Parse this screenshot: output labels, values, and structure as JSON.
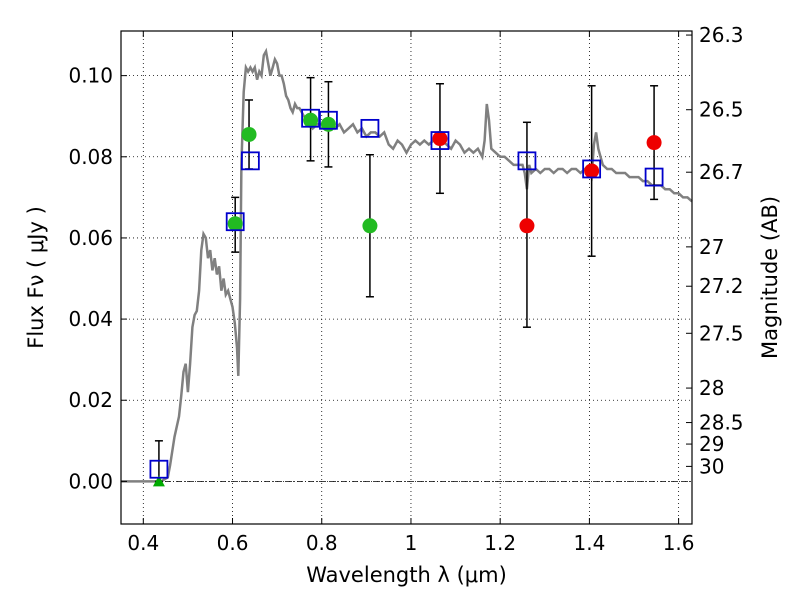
{
  "chart_data": {
    "type": "scatter",
    "xlabel": "Wavelength  λ (μm)",
    "ylabel": "Flux  Fν  ( μJy )",
    "ylabel_right": "Magnitude (AB)",
    "xlim": [
      0.35,
      1.63
    ],
    "ylim": [
      -0.0105,
      0.111
    ],
    "grid": true,
    "x_ticks": [
      0.4,
      0.6,
      0.8,
      1.0,
      1.2,
      1.4,
      1.6
    ],
    "x_tick_labels": [
      "0.4",
      "0.6",
      "0.8",
      "1",
      "1.2",
      "1.4",
      "1.6"
    ],
    "y_ticks": [
      0.0,
      0.02,
      0.04,
      0.06,
      0.08,
      0.1
    ],
    "y_tick_labels": [
      "0.00",
      "0.02",
      "0.04",
      "0.06",
      "0.08",
      "0.10"
    ],
    "right_ticks": [
      {
        "label": "26.3",
        "flux": 0.11
      },
      {
        "label": "26.5",
        "flux": 0.0916
      },
      {
        "label": "26.7",
        "flux": 0.0762
      },
      {
        "label": "27",
        "flux": 0.0578
      },
      {
        "label": "27.2",
        "flux": 0.0481
      },
      {
        "label": "27.5",
        "flux": 0.0365
      },
      {
        "label": "28",
        "flux": 0.023
      },
      {
        "label": "28.5",
        "flux": 0.0145
      },
      {
        "label": "29",
        "flux": 0.0092
      },
      {
        "label": "30",
        "flux": 0.0037
      }
    ],
    "model_spectrum": {
      "color": "#808080",
      "points": [
        [
          0.35,
          0.0
        ],
        [
          0.44,
          0.0
        ],
        [
          0.455,
          0.001
        ],
        [
          0.46,
          0.004
        ],
        [
          0.47,
          0.011
        ],
        [
          0.48,
          0.016
        ],
        [
          0.485,
          0.021
        ],
        [
          0.49,
          0.027
        ],
        [
          0.495,
          0.029
        ],
        [
          0.5,
          0.022
        ],
        [
          0.505,
          0.029
        ],
        [
          0.51,
          0.038
        ],
        [
          0.515,
          0.041
        ],
        [
          0.52,
          0.042
        ],
        [
          0.525,
          0.047
        ],
        [
          0.53,
          0.057
        ],
        [
          0.535,
          0.061
        ],
        [
          0.54,
          0.06
        ],
        [
          0.545,
          0.055
        ],
        [
          0.55,
          0.057
        ],
        [
          0.555,
          0.052
        ],
        [
          0.56,
          0.055
        ],
        [
          0.565,
          0.051
        ],
        [
          0.57,
          0.053
        ],
        [
          0.575,
          0.047
        ],
        [
          0.58,
          0.05
        ],
        [
          0.585,
          0.046
        ],
        [
          0.59,
          0.047
        ],
        [
          0.595,
          0.045
        ],
        [
          0.6,
          0.043
        ],
        [
          0.605,
          0.039
        ],
        [
          0.61,
          0.033
        ],
        [
          0.613,
          0.026
        ],
        [
          0.617,
          0.045
        ],
        [
          0.62,
          0.078
        ],
        [
          0.625,
          0.096
        ],
        [
          0.63,
          0.102
        ],
        [
          0.635,
          0.101
        ],
        [
          0.64,
          0.102
        ],
        [
          0.645,
          0.101
        ],
        [
          0.65,
          0.102
        ],
        [
          0.655,
          0.099
        ],
        [
          0.66,
          0.101
        ],
        [
          0.665,
          0.1
        ],
        [
          0.67,
          0.105
        ],
        [
          0.675,
          0.106
        ],
        [
          0.68,
          0.103
        ],
        [
          0.685,
          0.1
        ],
        [
          0.69,
          0.102
        ],
        [
          0.695,
          0.104
        ],
        [
          0.7,
          0.103
        ],
        [
          0.705,
          0.1
        ],
        [
          0.71,
          0.1
        ],
        [
          0.715,
          0.098
        ],
        [
          0.72,
          0.095
        ],
        [
          0.725,
          0.094
        ],
        [
          0.73,
          0.092
        ],
        [
          0.735,
          0.091
        ],
        [
          0.74,
          0.093
        ],
        [
          0.745,
          0.092
        ],
        [
          0.75,
          0.092
        ],
        [
          0.755,
          0.091
        ],
        [
          0.76,
          0.09
        ],
        [
          0.77,
          0.089
        ],
        [
          0.78,
          0.087
        ],
        [
          0.79,
          0.088
        ],
        [
          0.8,
          0.088
        ],
        [
          0.81,
          0.087
        ],
        [
          0.82,
          0.089
        ],
        [
          0.83,
          0.087
        ],
        [
          0.84,
          0.088
        ],
        [
          0.85,
          0.086
        ],
        [
          0.86,
          0.087
        ],
        [
          0.87,
          0.088
        ],
        [
          0.88,
          0.086
        ],
        [
          0.89,
          0.087
        ],
        [
          0.9,
          0.085
        ],
        [
          0.91,
          0.086
        ],
        [
          0.92,
          0.086
        ],
        [
          0.93,
          0.085
        ],
        [
          0.94,
          0.086
        ],
        [
          0.95,
          0.083
        ],
        [
          0.96,
          0.082
        ],
        [
          0.97,
          0.084
        ],
        [
          0.98,
          0.083
        ],
        [
          0.99,
          0.081
        ],
        [
          1.0,
          0.083
        ],
        [
          1.01,
          0.084
        ],
        [
          1.02,
          0.083
        ],
        [
          1.03,
          0.084
        ],
        [
          1.04,
          0.083
        ],
        [
          1.05,
          0.084
        ],
        [
          1.06,
          0.085
        ],
        [
          1.07,
          0.084
        ],
        [
          1.08,
          0.083
        ],
        [
          1.09,
          0.082
        ],
        [
          1.1,
          0.084
        ],
        [
          1.11,
          0.083
        ],
        [
          1.12,
          0.081
        ],
        [
          1.13,
          0.082
        ],
        [
          1.14,
          0.081
        ],
        [
          1.15,
          0.082
        ],
        [
          1.16,
          0.08
        ],
        [
          1.165,
          0.084
        ],
        [
          1.17,
          0.093
        ],
        [
          1.175,
          0.089
        ],
        [
          1.18,
          0.082
        ],
        [
          1.19,
          0.081
        ],
        [
          1.2,
          0.08
        ],
        [
          1.21,
          0.08
        ],
        [
          1.22,
          0.079
        ],
        [
          1.23,
          0.078
        ],
        [
          1.24,
          0.078
        ],
        [
          1.25,
          0.078
        ],
        [
          1.255,
          0.076
        ],
        [
          1.26,
          0.072
        ],
        [
          1.265,
          0.078
        ],
        [
          1.27,
          0.076
        ],
        [
          1.28,
          0.077
        ],
        [
          1.29,
          0.076
        ],
        [
          1.3,
          0.077
        ],
        [
          1.31,
          0.077
        ],
        [
          1.32,
          0.076
        ],
        [
          1.33,
          0.077
        ],
        [
          1.34,
          0.077
        ],
        [
          1.35,
          0.076
        ],
        [
          1.36,
          0.077
        ],
        [
          1.37,
          0.077
        ],
        [
          1.38,
          0.076
        ],
        [
          1.39,
          0.077
        ],
        [
          1.4,
          0.076
        ],
        [
          1.405,
          0.075
        ],
        [
          1.41,
          0.083
        ],
        [
          1.415,
          0.086
        ],
        [
          1.42,
          0.082
        ],
        [
          1.43,
          0.078
        ],
        [
          1.44,
          0.077
        ],
        [
          1.45,
          0.077
        ],
        [
          1.46,
          0.076
        ],
        [
          1.47,
          0.076
        ],
        [
          1.48,
          0.076
        ],
        [
          1.49,
          0.075
        ],
        [
          1.5,
          0.075
        ],
        [
          1.51,
          0.075
        ],
        [
          1.52,
          0.074
        ],
        [
          1.53,
          0.074
        ],
        [
          1.54,
          0.073
        ],
        [
          1.55,
          0.073
        ],
        [
          1.56,
          0.073
        ],
        [
          1.57,
          0.072
        ],
        [
          1.58,
          0.072
        ],
        [
          1.59,
          0.071
        ],
        [
          1.6,
          0.071
        ],
        [
          1.61,
          0.07
        ],
        [
          1.62,
          0.07
        ],
        [
          1.63,
          0.069
        ]
      ]
    },
    "model_photometry": {
      "marker": "open-square",
      "color": "#0000cc",
      "points": [
        {
          "x": 0.435,
          "y": 0.003
        },
        {
          "x": 0.606,
          "y": 0.064
        },
        {
          "x": 0.64,
          "y": 0.079
        },
        {
          "x": 0.775,
          "y": 0.0895
        },
        {
          "x": 0.815,
          "y": 0.089
        },
        {
          "x": 0.908,
          "y": 0.087
        },
        {
          "x": 1.065,
          "y": 0.084
        },
        {
          "x": 1.26,
          "y": 0.079
        },
        {
          "x": 1.405,
          "y": 0.077
        },
        {
          "x": 1.545,
          "y": 0.075
        }
      ]
    },
    "observed": [
      {
        "x": 0.435,
        "y": 0.0,
        "err_low": 0.0,
        "err_high": 0.01,
        "color": "#00aa00",
        "marker": "triangle"
      },
      {
        "x": 0.606,
        "y": 0.0635,
        "err_low": 0.0565,
        "err_high": 0.07,
        "color": "#22bb22",
        "marker": "circle"
      },
      {
        "x": 0.637,
        "y": 0.0855,
        "err_low": 0.077,
        "err_high": 0.094,
        "color": "#22bb22",
        "marker": "circle"
      },
      {
        "x": 0.775,
        "y": 0.089,
        "err_low": 0.079,
        "err_high": 0.0995,
        "color": "#22bb22",
        "marker": "circle"
      },
      {
        "x": 0.815,
        "y": 0.088,
        "err_low": 0.0775,
        "err_high": 0.0985,
        "color": "#22bb22",
        "marker": "circle"
      },
      {
        "x": 0.908,
        "y": 0.063,
        "err_low": 0.0455,
        "err_high": 0.0805,
        "color": "#22bb22",
        "marker": "circle"
      },
      {
        "x": 1.065,
        "y": 0.0845,
        "err_low": 0.071,
        "err_high": 0.098,
        "color": "#ee0000",
        "marker": "circle"
      },
      {
        "x": 1.26,
        "y": 0.063,
        "err_low": 0.038,
        "err_high": 0.0885,
        "color": "#ee0000",
        "marker": "circle"
      },
      {
        "x": 1.405,
        "y": 0.0765,
        "err_low": 0.0555,
        "err_high": 0.0975,
        "color": "#ee0000",
        "marker": "circle"
      },
      {
        "x": 1.545,
        "y": 0.0835,
        "err_low": 0.0695,
        "err_high": 0.0975,
        "color": "#ee0000",
        "marker": "circle"
      }
    ]
  }
}
